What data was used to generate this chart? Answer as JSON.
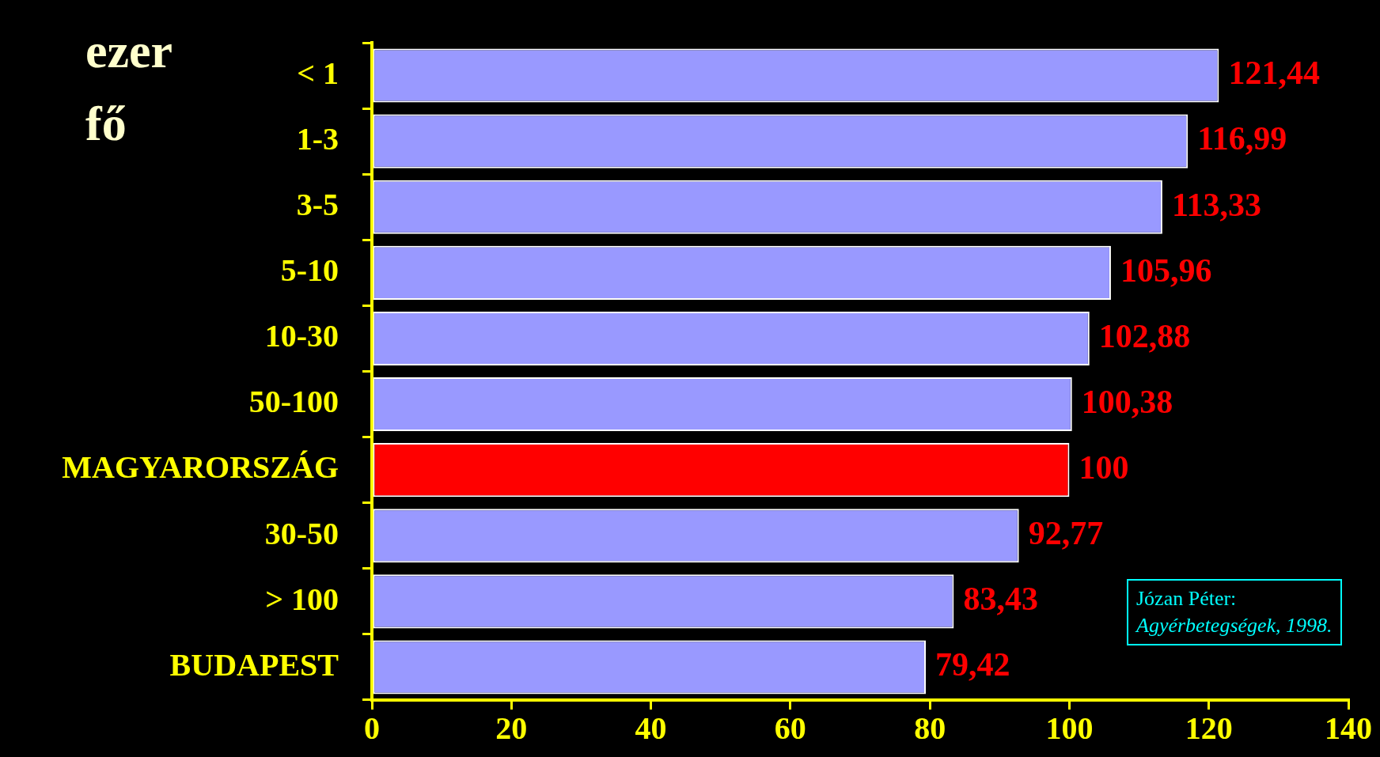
{
  "chart_data": {
    "type": "bar",
    "orientation": "horizontal",
    "ylabel": "ezer fő",
    "categories": [
      "< 1",
      "1-3",
      "3-5",
      "5-10",
      "10-30",
      "50-100",
      "MAGYARORSZÁG",
      "30-50",
      "> 100",
      "BUDAPEST"
    ],
    "values": [
      121.44,
      116.99,
      113.33,
      105.96,
      102.88,
      100.38,
      100,
      92.77,
      83.43,
      79.42
    ],
    "colors": [
      "#9999ff",
      "#9999ff",
      "#9999ff",
      "#9999ff",
      "#9999ff",
      "#9999ff",
      "#ff0000",
      "#9999ff",
      "#9999ff",
      "#9999ff"
    ],
    "xlim": [
      0,
      140
    ],
    "xticks": [
      0,
      20,
      40,
      60,
      80,
      100,
      120,
      140
    ],
    "value_labels": [
      "121,44",
      "116,99",
      "113,33",
      "105,96",
      "102,88",
      "100,38",
      "100",
      "92,77",
      "83,43",
      "79,42"
    ],
    "legend": false,
    "grid": false,
    "annotations": [
      "Józan Péter:",
      "Agyérbetegségek, 1998."
    ]
  }
}
